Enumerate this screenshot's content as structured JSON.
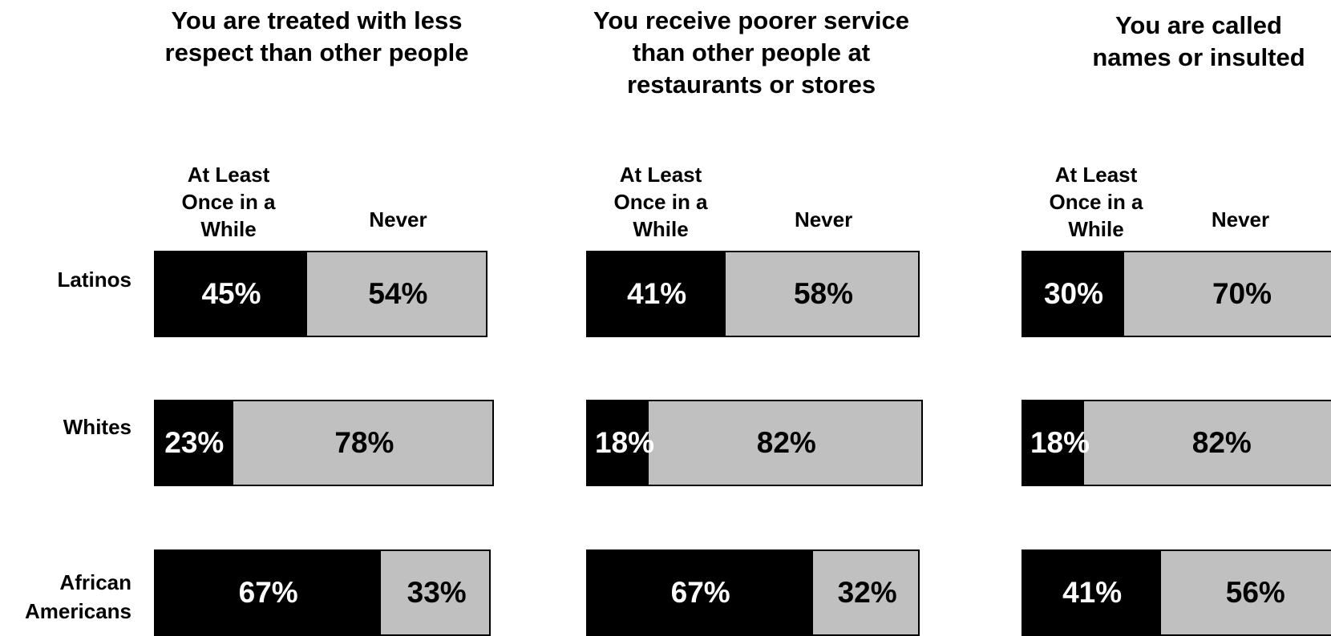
{
  "colors": {
    "at_least": "#000000",
    "never": "#c0c0c0",
    "label_on_dark": "#ffffff",
    "label_on_light": "#000000"
  },
  "row_labels": [
    "Latinos",
    "Whites",
    "African Americans"
  ],
  "col_heads": {
    "at_least": "At Least Once in a While",
    "never": "Never"
  },
  "chart_data": [
    {
      "type": "bar",
      "title": "You are treated with less respect than other people",
      "categories": [
        "Latinos",
        "Whites",
        "African Americans"
      ],
      "series": [
        {
          "name": "At Least Once in a While",
          "values": [
            45,
            23,
            67
          ],
          "labels": [
            "45%",
            "23%",
            "67%"
          ]
        },
        {
          "name": "Never",
          "values": [
            54,
            78,
            33
          ],
          "labels": [
            "54%",
            "78%",
            "33%"
          ]
        }
      ]
    },
    {
      "type": "bar",
      "title": "You receive poorer service than other people at restaurants or stores",
      "categories": [
        "Latinos",
        "Whites",
        "African Americans"
      ],
      "series": [
        {
          "name": "At Least Once in a While",
          "values": [
            41,
            18,
            67
          ],
          "labels": [
            "41%",
            "18%",
            "67%"
          ]
        },
        {
          "name": "Never",
          "values": [
            58,
            82,
            32
          ],
          "labels": [
            "58%",
            "82%",
            "32%"
          ]
        }
      ]
    },
    {
      "type": "bar",
      "title": "You are called names or insulted",
      "categories": [
        "Latinos",
        "Whites",
        "African Americans"
      ],
      "series": [
        {
          "name": "At Least Once in a While",
          "values": [
            30,
            18,
            41
          ],
          "labels": [
            "30%",
            "18%",
            "41%"
          ]
        },
        {
          "name": "Never",
          "values": [
            70,
            82,
            56
          ],
          "labels": [
            "70%",
            "82%",
            "56%"
          ]
        }
      ]
    }
  ]
}
